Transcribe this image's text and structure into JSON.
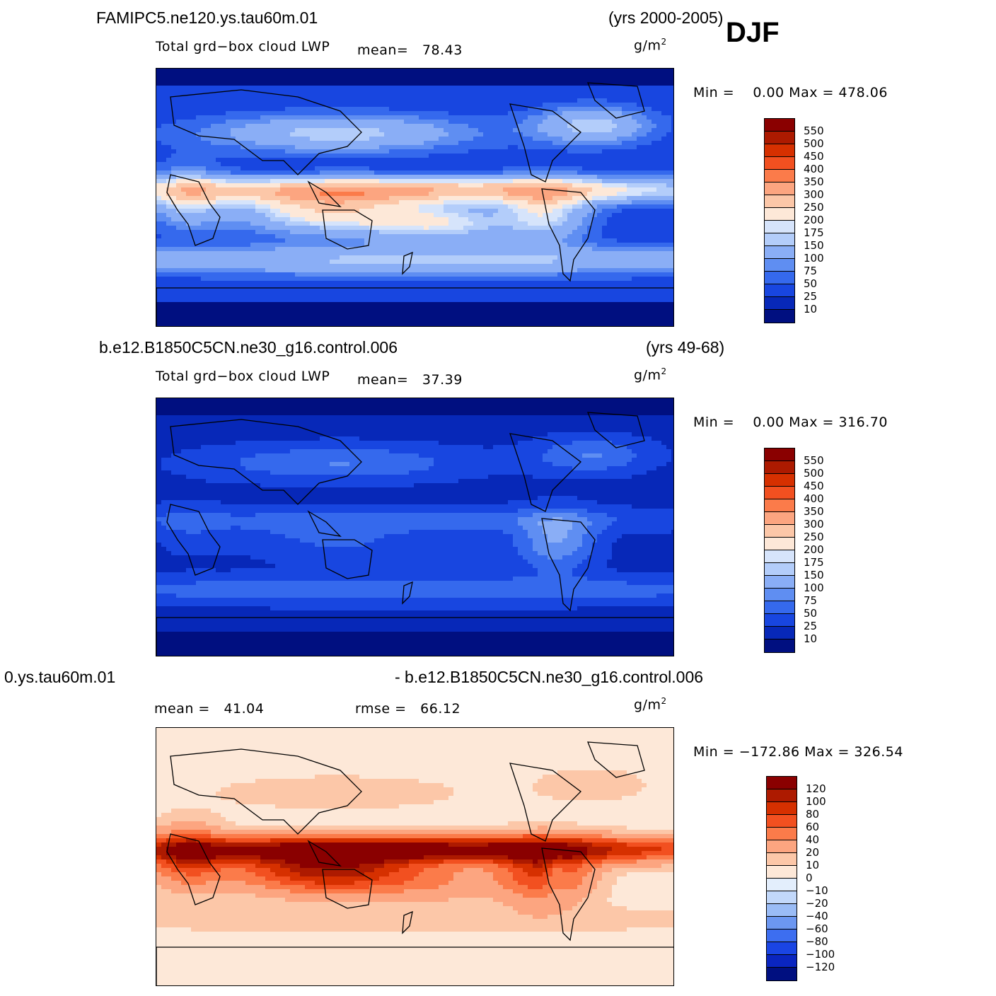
{
  "season": "DJF",
  "panels": [
    {
      "case": "FAMIPC5.ne120.ys.tau60m.01",
      "years": "(yrs 2000-2005)",
      "variable": "Total grd−box cloud LWP",
      "stat1": "mean=   78.43",
      "stat2": "",
      "units": "g/m",
      "units_exp": "2",
      "minmax": "Min =    0.00 Max = 478.06",
      "colorbar": {
        "labels": [
          "550",
          "500",
          "450",
          "400",
          "350",
          "300",
          "250",
          "200",
          "175",
          "150",
          "100",
          "75",
          "50",
          "25",
          "10"
        ],
        "colors": [
          "#8a0000",
          "#ad1a00",
          "#d63000",
          "#f25020",
          "#fb7b4a",
          "#fca580",
          "#fcc7a8",
          "#fde8d8",
          "#d6e4fb",
          "#b3cdfa",
          "#8aaef6",
          "#5f8ef2",
          "#3569ed",
          "#1846e0",
          "#0728b8",
          "#000f80"
        ]
      },
      "field": "model_hi"
    },
    {
      "case": "b.e12.B1850C5CN.ne30_g16.control.006",
      "years": "(yrs 49-68)",
      "variable": "Total grd−box cloud LWP",
      "stat1": "mean=   37.39",
      "stat2": "",
      "units": "g/m",
      "units_exp": "2",
      "minmax": "Min =    0.00 Max = 316.70",
      "colorbar": {
        "labels": [
          "550",
          "500",
          "450",
          "400",
          "350",
          "300",
          "250",
          "200",
          "175",
          "150",
          "100",
          "75",
          "50",
          "25",
          "10"
        ],
        "colors": [
          "#8a0000",
          "#ad1a00",
          "#d63000",
          "#f25020",
          "#fb7b4a",
          "#fca580",
          "#fcc7a8",
          "#fde8d8",
          "#d6e4fb",
          "#b3cdfa",
          "#8aaef6",
          "#5f8ef2",
          "#3569ed",
          "#1846e0",
          "#0728b8",
          "#000f80"
        ]
      },
      "field": "model_lo"
    },
    {
      "case": "0.ys.tau60m.01",
      "years": "- b.e12.B1850C5CN.ne30_g16.control.006",
      "variable": "",
      "stat1": "mean =   41.04",
      "stat2": "rmse =   66.12",
      "units": "g/m",
      "units_exp": "2",
      "minmax": "Min = −172.86 Max = 326.54",
      "colorbar": {
        "labels": [
          "120",
          "100",
          "80",
          "60",
          "40",
          "20",
          "10",
          "0",
          "−10",
          "−20",
          "−40",
          "−60",
          "−80",
          "−100",
          "−120"
        ],
        "colors": [
          "#8a0000",
          "#ad1a00",
          "#d63000",
          "#f25020",
          "#fb7b4a",
          "#fca580",
          "#fcc7a8",
          "#fde8d8",
          "#e3eefc",
          "#c2d8fa",
          "#9abcf6",
          "#6c97f1",
          "#3d6ef0",
          "#1a45e4",
          "#0a25c0",
          "#000f80"
        ]
      },
      "field": "diff"
    }
  ]
}
